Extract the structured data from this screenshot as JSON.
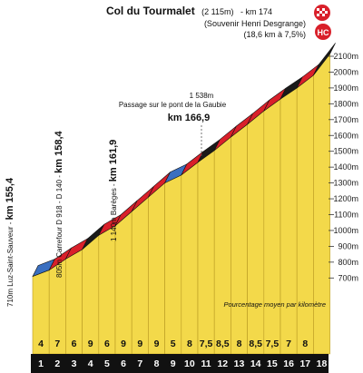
{
  "header": {
    "summit_name": "Col du Tourmalet",
    "summit_alt": "(2 115m)",
    "summit_km": "- km 174",
    "souvenir": "(Souvenir Henri Desgrange)",
    "climb_stats": "(18,6 km à 7,5%)",
    "category_badge": "HC"
  },
  "annotations": {
    "gaubie_alt": "1 538m",
    "gaubie_name": "Passage sur le pont de la Gaubie",
    "gaubie_km": "km 166,9",
    "luz_prefix": "710m Luz-Saint-Sauveur - ",
    "luz_km": "km 155,4",
    "carrefour_prefix": "805m Carrefour D 918 - D 140 - ",
    "carrefour_km": "km 158,4",
    "bareges_prefix": "1 140m Barèges - ",
    "bareges_km": "km 161,9",
    "avg_note": "Pourcentage moyen par kilomètre"
  },
  "colors": {
    "profile_fill": "#f3d94a",
    "profile_band": "#d9202a",
    "section_black": "#1a1a1a",
    "section_blue": "#3a6fc0",
    "ground": "#111111",
    "badge_red": "#d9202a"
  },
  "chart_data": {
    "type": "area",
    "title": "Col du Tourmalet",
    "xlabel": "",
    "ylabel": "",
    "ylim": [
      650,
      2150
    ],
    "y_ticks": [
      "700m",
      "800m",
      "900m",
      "1000m",
      "1100m",
      "1200m",
      "1300m",
      "1400m",
      "1500m",
      "1600m",
      "1700m",
      "1800m",
      "1900m",
      "2000m",
      "2100m"
    ],
    "y_tick_values": [
      700,
      800,
      900,
      1000,
      1100,
      1200,
      1300,
      1400,
      1500,
      1600,
      1700,
      1800,
      1900,
      2000,
      2100
    ],
    "km_labels": [
      "1",
      "2",
      "3",
      "4",
      "5",
      "6",
      "7",
      "8",
      "9",
      "10",
      "11",
      "12",
      "13",
      "14",
      "15",
      "16",
      "17",
      "18"
    ],
    "gradients": [
      "4",
      "7",
      "6",
      "9",
      "6",
      "9",
      "9",
      "9",
      "5",
      "8",
      "7,5",
      "8,5",
      "8",
      "8,5",
      "7,5",
      "7",
      "8",
      ""
    ],
    "segment_colors": [
      "blue",
      "red",
      "red",
      "black",
      "red",
      "red",
      "red",
      "red",
      "blue",
      "red",
      "black",
      "red",
      "red",
      "red",
      "red",
      "black",
      "red",
      "black"
    ],
    "km_elevations": [
      710,
      750,
      820,
      880,
      970,
      1030,
      1120,
      1210,
      1300,
      1350,
      1430,
      1505,
      1590,
      1670,
      1755,
      1830,
      1900,
      1980,
      2115
    ]
  }
}
